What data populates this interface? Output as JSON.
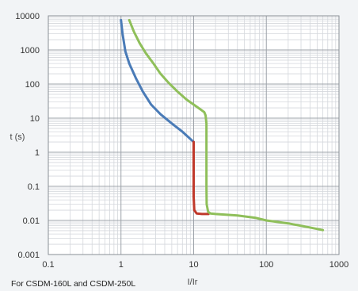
{
  "chart_data": {
    "type": "line",
    "title": "",
    "caption": "For CSDM-160L and CSDM-250L",
    "xlabel": "I/Ir",
    "ylabel": "t (s)",
    "xscale": "log",
    "yscale": "log",
    "xlim": [
      0.1,
      1000
    ],
    "ylim": [
      0.001,
      10000
    ],
    "grid": true,
    "x_ticks": [
      "0.1",
      "1",
      "10",
      "100",
      "1000"
    ],
    "y_ticks": [
      "0.001",
      "0.01",
      "0.1",
      "1",
      "10",
      "100",
      "1000",
      "10000"
    ],
    "series": [
      {
        "color": "#4a7bb7",
        "points": [
          [
            1.0,
            7500
          ],
          [
            1.05,
            3000
          ],
          [
            1.15,
            900
          ],
          [
            1.3,
            400
          ],
          [
            1.6,
            150
          ],
          [
            2.0,
            60
          ],
          [
            2.6,
            25
          ],
          [
            3.5,
            13
          ],
          [
            5.0,
            7
          ],
          [
            7.0,
            4
          ],
          [
            10.0,
            2
          ]
        ]
      },
      {
        "color": "#c0392b",
        "points": [
          [
            10.0,
            2
          ],
          [
            10.0,
            0.3
          ],
          [
            10.0,
            0.05
          ],
          [
            10.2,
            0.02
          ],
          [
            11.0,
            0.016
          ],
          [
            13.0,
            0.0155
          ],
          [
            16.0,
            0.0155
          ]
        ]
      },
      {
        "color": "#8fbf5a",
        "points": [
          [
            1.3,
            7500
          ],
          [
            1.5,
            3500
          ],
          [
            1.8,
            1600
          ],
          [
            2.2,
            800
          ],
          [
            2.8,
            400
          ],
          [
            3.5,
            200
          ],
          [
            4.5,
            110
          ],
          [
            6.0,
            60
          ],
          [
            8.0,
            35
          ],
          [
            10.0,
            25
          ],
          [
            12.0,
            19
          ],
          [
            14.0,
            15
          ],
          [
            14.6,
            12
          ],
          [
            15.0,
            7
          ],
          [
            15.0,
            1
          ],
          [
            15.0,
            0.1
          ],
          [
            15.1,
            0.03
          ],
          [
            15.8,
            0.018
          ],
          [
            17.0,
            0.016
          ],
          [
            20.0,
            0.0155
          ],
          [
            40.0,
            0.014
          ],
          [
            70.0,
            0.012
          ],
          [
            100.0,
            0.01
          ],
          [
            200.0,
            0.0082
          ],
          [
            400.0,
            0.0062
          ],
          [
            600.0,
            0.0052
          ]
        ]
      }
    ]
  }
}
